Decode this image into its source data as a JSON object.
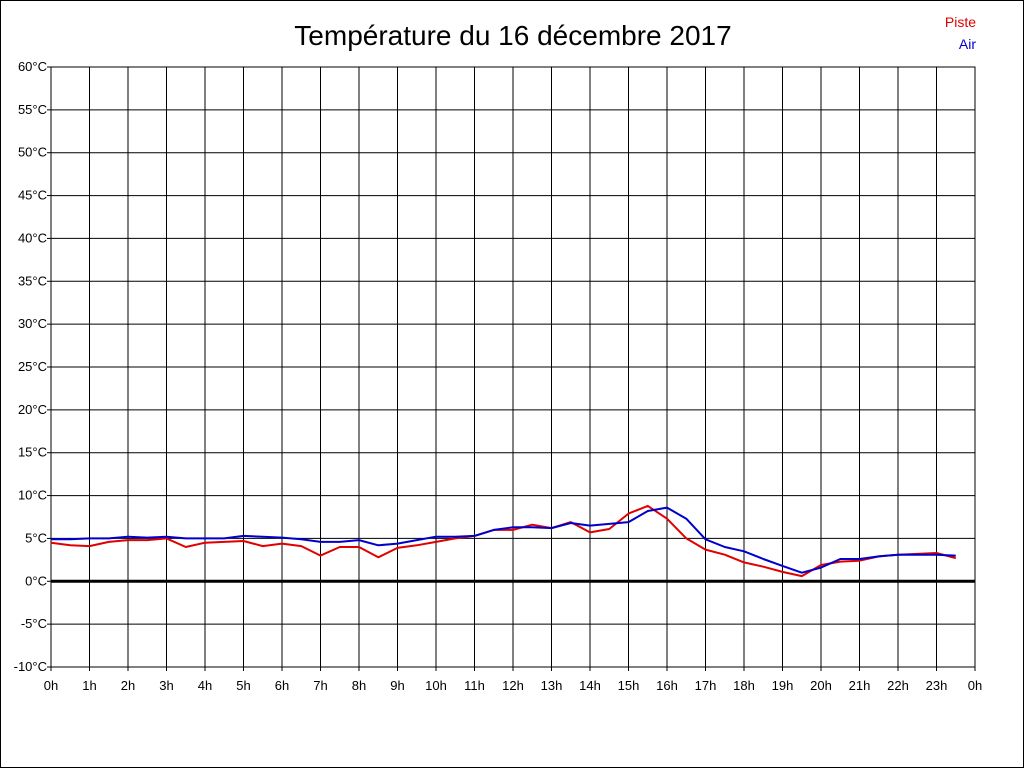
{
  "chart_data": {
    "type": "line",
    "title": "Température du 16 décembre 2017",
    "ylim": [
      -10,
      60
    ],
    "xlim": [
      0,
      24
    ],
    "grid": true,
    "legend_position": "top-right",
    "y_ticks": [
      "-10°C",
      "-5°C",
      "0°C",
      "5°C",
      "10°C",
      "15°C",
      "20°C",
      "25°C",
      "30°C",
      "35°C",
      "40°C",
      "45°C",
      "50°C",
      "55°C",
      "60°C"
    ],
    "x_ticks": [
      "0h",
      "1h",
      "2h",
      "3h",
      "4h",
      "5h",
      "6h",
      "7h",
      "8h",
      "9h",
      "10h",
      "11h",
      "12h",
      "13h",
      "14h",
      "15h",
      "16h",
      "17h",
      "18h",
      "19h",
      "20h",
      "21h",
      "22h",
      "23h",
      "0h"
    ],
    "series": [
      {
        "name": "Piste",
        "color": "#e00000",
        "x": [
          0,
          0.5,
          1,
          1.5,
          2,
          2.5,
          3,
          3.5,
          4,
          4.5,
          5,
          5.5,
          6,
          6.5,
          7,
          7.5,
          8,
          8.5,
          9,
          9.5,
          10,
          10.5,
          11,
          11.5,
          12,
          12.5,
          13,
          13.5,
          14,
          14.5,
          15,
          15.5,
          16,
          16.5,
          17,
          17.5,
          18,
          18.5,
          19,
          19.5,
          20,
          20.5,
          21,
          21.5,
          22,
          22.5,
          23,
          23.5
        ],
        "y": [
          4.5,
          4.2,
          4.1,
          4.6,
          4.8,
          4.8,
          5.0,
          4.0,
          4.5,
          4.6,
          4.7,
          4.1,
          4.4,
          4.1,
          3.0,
          4.0,
          4.0,
          2.8,
          3.9,
          4.2,
          4.6,
          5.0,
          5.3,
          6.0,
          6.0,
          6.6,
          6.2,
          6.9,
          5.7,
          6.1,
          7.9,
          8.8,
          7.3,
          5.0,
          3.7,
          3.1,
          2.2,
          1.7,
          1.1,
          0.6,
          1.9,
          2.3,
          2.4,
          2.9,
          3.1,
          3.2,
          3.3,
          2.7
        ]
      },
      {
        "name": "Air",
        "color": "#0000cc",
        "x": [
          0,
          0.5,
          1,
          1.5,
          2,
          2.5,
          3,
          3.5,
          4,
          4.5,
          5,
          5.5,
          6,
          6.5,
          7,
          7.5,
          8,
          8.5,
          9,
          9.5,
          10,
          10.5,
          11,
          11.5,
          12,
          12.5,
          13,
          13.5,
          14,
          14.5,
          15,
          15.5,
          16,
          16.5,
          17,
          17.5,
          18,
          18.5,
          19,
          19.5,
          20,
          20.5,
          21,
          21.5,
          22,
          22.5,
          23,
          23.5
        ],
        "y": [
          4.9,
          4.9,
          5.0,
          5.0,
          5.2,
          5.1,
          5.2,
          5.0,
          5.0,
          5.0,
          5.3,
          5.2,
          5.1,
          4.9,
          4.6,
          4.6,
          4.8,
          4.2,
          4.4,
          4.8,
          5.2,
          5.2,
          5.3,
          6.0,
          6.3,
          6.3,
          6.2,
          6.8,
          6.5,
          6.7,
          6.9,
          8.2,
          8.6,
          7.3,
          4.9,
          4.0,
          3.5,
          2.6,
          1.8,
          1.0,
          1.6,
          2.6,
          2.6,
          2.9,
          3.1,
          3.1,
          3.1,
          3.0
        ]
      }
    ]
  }
}
